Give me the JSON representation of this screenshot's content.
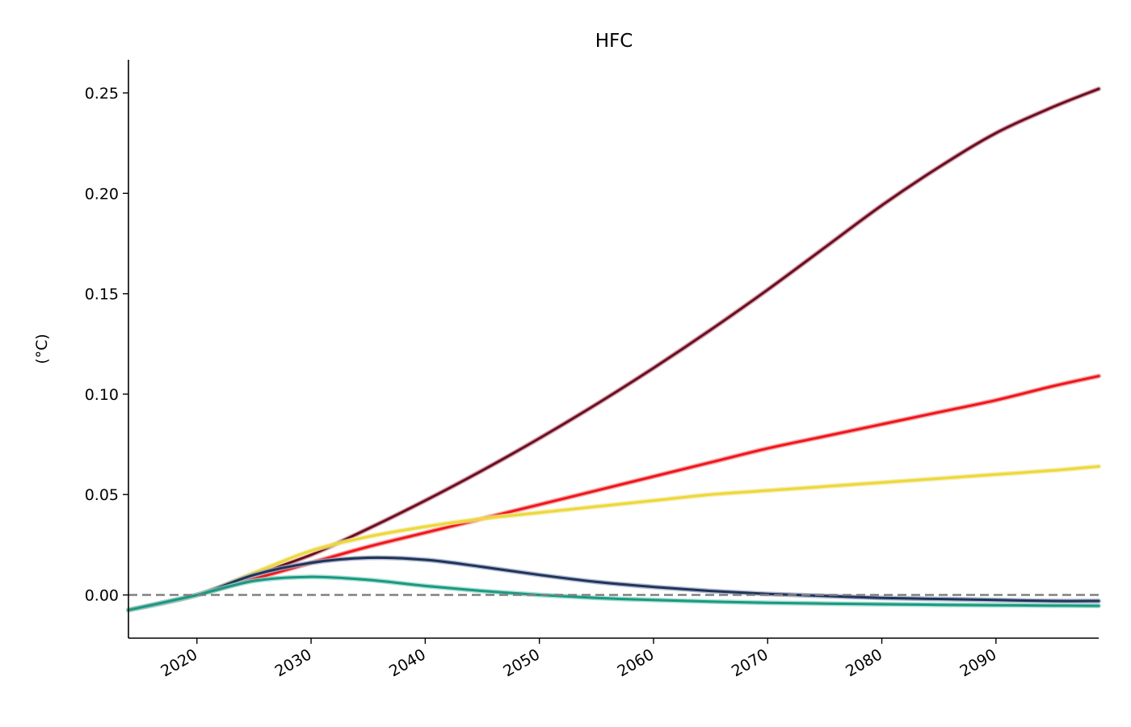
{
  "chart_data": {
    "type": "line",
    "title": "HFC",
    "ylabel": "(°C)",
    "xlabel": "",
    "xlim": [
      2014,
      2099
    ],
    "ylim": [
      -0.0215,
      0.2665
    ],
    "x_ticks": [
      2020,
      2030,
      2040,
      2050,
      2060,
      2070,
      2080,
      2090
    ],
    "x_tick_labels": [
      "2020",
      "2030",
      "2040",
      "2050",
      "2060",
      "2070",
      "2080",
      "2090"
    ],
    "y_ticks": [
      0.0,
      0.05,
      0.1,
      0.15,
      0.2,
      0.25
    ],
    "y_tick_labels": [
      "0.00",
      "0.05",
      "0.10",
      "0.15",
      "0.20",
      "0.25"
    ],
    "grid": false,
    "reference_line": {
      "y": 0.0,
      "style": "dashed",
      "color": "#808080"
    },
    "x": [
      2014,
      2020,
      2025,
      2030,
      2035,
      2040,
      2045,
      2050,
      2055,
      2060,
      2065,
      2070,
      2075,
      2080,
      2085,
      2090,
      2095,
      2099
    ],
    "series": [
      {
        "color": "#6b0f1e",
        "band_color": "#c9879a",
        "values": [
          -0.0075,
          0.0,
          0.01,
          0.02,
          0.033,
          0.047,
          0.062,
          0.078,
          0.095,
          0.113,
          0.132,
          0.152,
          0.173,
          0.194,
          0.213,
          0.23,
          0.243,
          0.252
        ]
      },
      {
        "color": "#f0161b",
        "band_color": "#f28a8a",
        "values": [
          -0.0075,
          0.0,
          0.008,
          0.016,
          0.024,
          0.031,
          0.038,
          0.045,
          0.052,
          0.059,
          0.066,
          0.073,
          0.079,
          0.085,
          0.091,
          0.097,
          0.104,
          0.109
        ]
      },
      {
        "color": "#ecd83a",
        "band_color": "#f3e792",
        "values": [
          -0.0075,
          0.0,
          0.011,
          0.022,
          0.029,
          0.034,
          0.038,
          0.041,
          0.044,
          0.047,
          0.05,
          0.052,
          0.054,
          0.056,
          0.058,
          0.06,
          0.062,
          0.064
        ]
      },
      {
        "color": "#20345a",
        "band_color": "#9aa6c2",
        "values": [
          -0.0075,
          0.0,
          0.01,
          0.016,
          0.0185,
          0.0175,
          0.014,
          0.01,
          0.0065,
          0.004,
          0.002,
          0.0005,
          -0.0005,
          -0.0015,
          -0.002,
          -0.0025,
          -0.003,
          -0.003
        ]
      },
      {
        "color": "#1a9981",
        "band_color": "#8fd5c4",
        "values": [
          -0.0075,
          0.0,
          0.007,
          0.009,
          0.0075,
          0.0045,
          0.002,
          0.0,
          -0.0015,
          -0.0025,
          -0.0033,
          -0.0039,
          -0.0043,
          -0.0046,
          -0.0049,
          -0.0051,
          -0.0053,
          -0.0054
        ]
      }
    ]
  }
}
